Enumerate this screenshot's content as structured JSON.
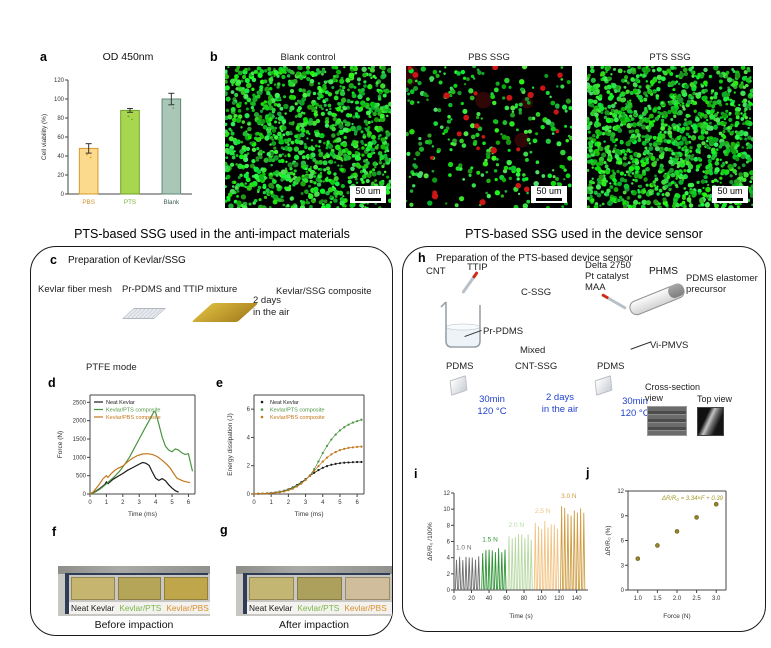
{
  "colors": {
    "process_blue": "#2343cc",
    "pts_green": "#7ab648",
    "pbs_orange": "#d98f2b"
  },
  "panels": {
    "a": {
      "label": "a"
    },
    "b": {
      "label": "b",
      "images": [
        {
          "title": "Blank control",
          "scale_bar": "50 um",
          "dots": {
            "green": 1150,
            "red": 0,
            "blobs": 0,
            "seed": 3
          }
        },
        {
          "title": "PBS SSG",
          "scale_bar": "50 um",
          "dots": {
            "green": 280,
            "red": 24,
            "blobs": 4,
            "seed": 7
          }
        },
        {
          "title": "PTS SSG",
          "scale_bar": "50 um",
          "dots": {
            "green": 1300,
            "red": 0,
            "blobs": 0,
            "seed": 5
          }
        }
      ]
    },
    "left_section": {
      "title": "PTS-based SSG used in the anti-impact materials"
    },
    "right_section": {
      "title": "PTS-based SSG used in the device sensor"
    },
    "c": {
      "label": "c",
      "title": "Preparation of Kevlar/SSG",
      "labels": {
        "mesh": "Kevlar fiber mesh",
        "mixture": "Pr-PDMS and TTIP mixture",
        "composite": "Kevlar/SSG composite",
        "days": "2 days",
        "air": "in the air"
      }
    },
    "d": {
      "label": "d",
      "mode": "PTFE mode"
    },
    "e": {
      "label": "e"
    },
    "f": {
      "label": "f",
      "caption": "Before impaction",
      "samples": [
        {
          "name": "Neat Kevlar",
          "color": "#1a1a1a"
        },
        {
          "name": "Kevlar/PTS",
          "color": "#7ab648"
        },
        {
          "name": "Kevlar/PBS",
          "color": "#d98f2b"
        }
      ],
      "strip_colors": [
        "#c6b56e",
        "#b4a558",
        "#bfa64b"
      ]
    },
    "g": {
      "label": "g",
      "caption": "After impaction",
      "samples": [
        {
          "name": "Neat Kevlar",
          "color": "#1a1a1a"
        },
        {
          "name": "Kevlar/PTS",
          "color": "#7ab648"
        },
        {
          "name": "Kevlar/PBS",
          "color": "#d98f2b"
        }
      ],
      "strip_colors": [
        "#c3b572",
        "#aca05c",
        "#cfbd9b"
      ]
    },
    "h": {
      "label": "h",
      "title": "Preparation of the PTS-based device sensor",
      "labels": {
        "cnt": "CNT",
        "ttip": "TTIP",
        "cssg": "C-SSG",
        "delta": "Delta 2750",
        "pt": "Pt catalyst",
        "maa": "MAA",
        "phms": "PHMS",
        "pdms_elastomer": "PDMS elastomer",
        "precursor": "precursor",
        "pr_pdms": "Pr-PDMS",
        "mixed": "Mixed",
        "vi_pmvs": "Vi-PMVS",
        "pdms1": "PDMS",
        "cnt_ssg": "CNT-SSG",
        "pdms2": "PDMS",
        "cure1a": "30min",
        "cure1b": "120 °C",
        "days_a": "2 days",
        "days_b": "in the air",
        "cure2a": "30min",
        "cure2b": "120 °C",
        "cross1": "Cross-section",
        "cross2": "view",
        "top_view": "Top view"
      }
    },
    "i": {
      "label": "i"
    },
    "j": {
      "label": "j"
    }
  },
  "chart_data": [
    {
      "id": "chart-a",
      "type": "bar",
      "title": "OD 450nm",
      "ylabel": "Cell viability (%)",
      "ylim": [
        0,
        120
      ],
      "yticks": [
        0,
        20,
        40,
        60,
        80,
        100,
        120
      ],
      "categories": [
        "PBS",
        "PTS",
        "Blank"
      ],
      "values": [
        48,
        88,
        100
      ],
      "errors": [
        5,
        2,
        6
      ],
      "bar_colors": [
        "#fbd98d",
        "#a8d64e",
        "#a9c6b6"
      ],
      "bar_edge_colors": [
        "#d9992b",
        "#6ba32a",
        "#5f8878"
      ],
      "label_colors": [
        "#cf9433",
        "#7ab33a",
        "#3f5f55"
      ],
      "margins": {
        "l": 30,
        "r": 14,
        "t": 12,
        "b": 22
      }
    },
    {
      "id": "chart-d",
      "type": "line",
      "xlabel": "Time (ms)",
      "ylabel": "Force (N)",
      "xlim": [
        0,
        6.4
      ],
      "ylim": [
        0,
        2700
      ],
      "xticks": [
        0,
        1,
        2,
        3,
        4,
        5,
        6
      ],
      "yticks": [
        0,
        500,
        1000,
        1500,
        2000,
        2500
      ],
      "frame": true,
      "margins": {
        "l": 36,
        "r": 5,
        "t": 5,
        "b": 24
      },
      "series": [
        {
          "name": "Neat Kevlar",
          "color": "#1a1a1a",
          "points": [
            [
              0,
              0
            ],
            [
              0.3,
              60
            ],
            [
              0.6,
              150
            ],
            [
              0.9,
              260
            ],
            [
              1.0,
              330
            ],
            [
              1.1,
              280
            ],
            [
              1.4,
              400
            ],
            [
              1.7,
              480
            ],
            [
              2.0,
              560
            ],
            [
              2.3,
              650
            ],
            [
              2.6,
              720
            ],
            [
              2.9,
              790
            ],
            [
              3.2,
              860
            ],
            [
              3.4,
              840
            ],
            [
              3.6,
              780
            ],
            [
              3.8,
              600
            ],
            [
              4.0,
              430
            ],
            [
              4.2,
              370
            ],
            [
              4.4,
              420
            ],
            [
              4.6,
              360
            ],
            [
              4.8,
              250
            ],
            [
              5.0,
              160
            ],
            [
              5.2,
              90
            ],
            [
              5.4,
              50
            ]
          ]
        },
        {
          "name": "Kevlar/PTS composite",
          "color": "#4a9440",
          "points": [
            [
              0,
              0
            ],
            [
              0.3,
              50
            ],
            [
              0.6,
              130
            ],
            [
              0.9,
              240
            ],
            [
              1.2,
              360
            ],
            [
              1.5,
              480
            ],
            [
              1.8,
              620
            ],
            [
              2.1,
              800
            ],
            [
              2.4,
              1000
            ],
            [
              2.7,
              1250
            ],
            [
              3.0,
              1500
            ],
            [
              3.3,
              1750
            ],
            [
              3.6,
              2000
            ],
            [
              3.9,
              2250
            ],
            [
              4.0,
              2230
            ],
            [
              4.2,
              1900
            ],
            [
              4.4,
              1550
            ],
            [
              4.6,
              1300
            ],
            [
              4.8,
              1200
            ],
            [
              5.0,
              1150
            ],
            [
              5.2,
              1230
            ],
            [
              5.4,
              1200
            ],
            [
              5.6,
              1120
            ],
            [
              5.8,
              1080
            ],
            [
              6.0,
              1100
            ],
            [
              6.1,
              900
            ],
            [
              6.25,
              620
            ]
          ]
        },
        {
          "name": "Kevlar/PBS composite",
          "color": "#c4761b",
          "points": [
            [
              0,
              0
            ],
            [
              0.2,
              60
            ],
            [
              0.5,
              220
            ],
            [
              0.8,
              420
            ],
            [
              1.0,
              500
            ],
            [
              1.1,
              450
            ],
            [
              1.3,
              560
            ],
            [
              1.5,
              640
            ],
            [
              1.7,
              700
            ],
            [
              2.0,
              760
            ],
            [
              2.3,
              880
            ],
            [
              2.6,
              980
            ],
            [
              2.9,
              1050
            ],
            [
              3.2,
              1090
            ],
            [
              3.5,
              1100
            ],
            [
              3.8,
              1080
            ],
            [
              4.1,
              1020
            ],
            [
              4.4,
              920
            ],
            [
              4.7,
              800
            ],
            [
              4.9,
              700
            ],
            [
              5.1,
              560
            ],
            [
              5.3,
              430
            ],
            [
              5.5,
              390
            ],
            [
              5.7,
              350
            ],
            [
              5.9,
              330
            ],
            [
              6.1,
              310
            ]
          ]
        }
      ]
    },
    {
      "id": "chart-e",
      "type": "scatter-line",
      "xlabel": "Time (ms)",
      "ylabel": "Energy dissipation (J)",
      "xlim": [
        0,
        6.4
      ],
      "ylim": [
        0,
        7
      ],
      "xticks": [
        0,
        1,
        2,
        3,
        4,
        5,
        6
      ],
      "yticks": [
        0,
        2,
        4,
        6
      ],
      "frame": true,
      "x_start": 0,
      "x_step": 0.25,
      "margins": {
        "l": 30,
        "r": 8,
        "t": 5,
        "b": 24
      },
      "series": [
        {
          "name": "Neat Kevlar",
          "color": "#1a1a1a",
          "y": [
            0.02,
            0.02,
            0.03,
            0.05,
            0.07,
            0.11,
            0.16,
            0.23,
            0.33,
            0.46,
            0.63,
            0.83,
            1.05,
            1.28,
            1.5,
            1.69,
            1.85,
            1.97,
            2.07,
            2.13,
            2.18,
            2.21,
            2.23,
            2.25,
            2.26,
            2.26
          ]
        },
        {
          "name": "Kevlar/PTS composite",
          "color": "#4a9440",
          "y": [
            0.02,
            0.03,
            0.04,
            0.05,
            0.07,
            0.1,
            0.15,
            0.21,
            0.3,
            0.42,
            0.58,
            0.78,
            1.02,
            1.32,
            1.75,
            2.3,
            2.9,
            3.4,
            3.85,
            4.2,
            4.5,
            4.72,
            4.9,
            5.05,
            5.15,
            5.25
          ]
        },
        {
          "name": "Kevlar/PBS composite",
          "color": "#c4761b",
          "y": [
            0.01,
            0.02,
            0.03,
            0.04,
            0.06,
            0.08,
            0.12,
            0.18,
            0.26,
            0.37,
            0.53,
            0.73,
            0.99,
            1.3,
            1.63,
            1.97,
            2.29,
            2.57,
            2.8,
            2.97,
            3.1,
            3.19,
            3.26,
            3.3,
            3.33,
            3.35
          ]
        }
      ]
    },
    {
      "id": "chart-i",
      "type": "pulse",
      "xlabel": "Time (s)",
      "ylabel": "ΔR/R₀ /100%",
      "xlim": [
        0,
        153
      ],
      "ylim": [
        0,
        12
      ],
      "xticks": [
        0,
        20,
        40,
        60,
        80,
        100,
        120,
        140
      ],
      "yticks": [
        0,
        2,
        4,
        6,
        8,
        10,
        12
      ],
      "margins": {
        "l": 30,
        "r": 8,
        "t": 14,
        "b": 30
      },
      "groups": [
        {
          "label": "1.0 N",
          "color": "#6e6e6e",
          "amplitude": 4.2,
          "t_start": 1,
          "t_end": 30,
          "cycles": 8
        },
        {
          "label": "1.5 N",
          "color": "#2e9434",
          "amplitude": 5.2,
          "t_start": 31,
          "t_end": 60,
          "cycles": 8
        },
        {
          "label": "2.0 N",
          "color": "#b7d9a2",
          "amplitude": 7.0,
          "t_start": 61,
          "t_end": 90,
          "cycles": 8
        },
        {
          "label": "2.5 N",
          "color": "#f2c382",
          "amplitude": 8.7,
          "t_start": 91,
          "t_end": 120,
          "cycles": 8
        },
        {
          "label": "3.0 N",
          "color": "#cf9c42",
          "amplitude": 10.6,
          "t_start": 121,
          "t_end": 150,
          "cycles": 8
        }
      ]
    },
    {
      "id": "chart-j",
      "type": "scatter",
      "xlabel": "Force (N)",
      "ylabel": "ΔR/R₀ (%)",
      "xlim": [
        0.75,
        3.25
      ],
      "ylim": [
        0,
        12
      ],
      "xticks": [
        1.0,
        1.5,
        2.0,
        2.5,
        3.0
      ],
      "xtick_labels": [
        "1.0",
        "1.5",
        "2.0",
        "2.5",
        "3.0"
      ],
      "yticks": [
        0,
        3,
        6,
        9,
        12
      ],
      "frame": true,
      "points": [
        [
          1.0,
          3.8
        ],
        [
          1.5,
          5.4
        ],
        [
          2.0,
          7.1
        ],
        [
          2.5,
          8.8
        ],
        [
          3.0,
          10.4
        ]
      ],
      "point_color": "#94832a",
      "annotation": "ΔR/R₀ = 3.34×F + 0.39",
      "annotation_color": "#a69a28",
      "margins": {
        "l": 26,
        "r": 6,
        "t": 12,
        "b": 30
      }
    }
  ]
}
